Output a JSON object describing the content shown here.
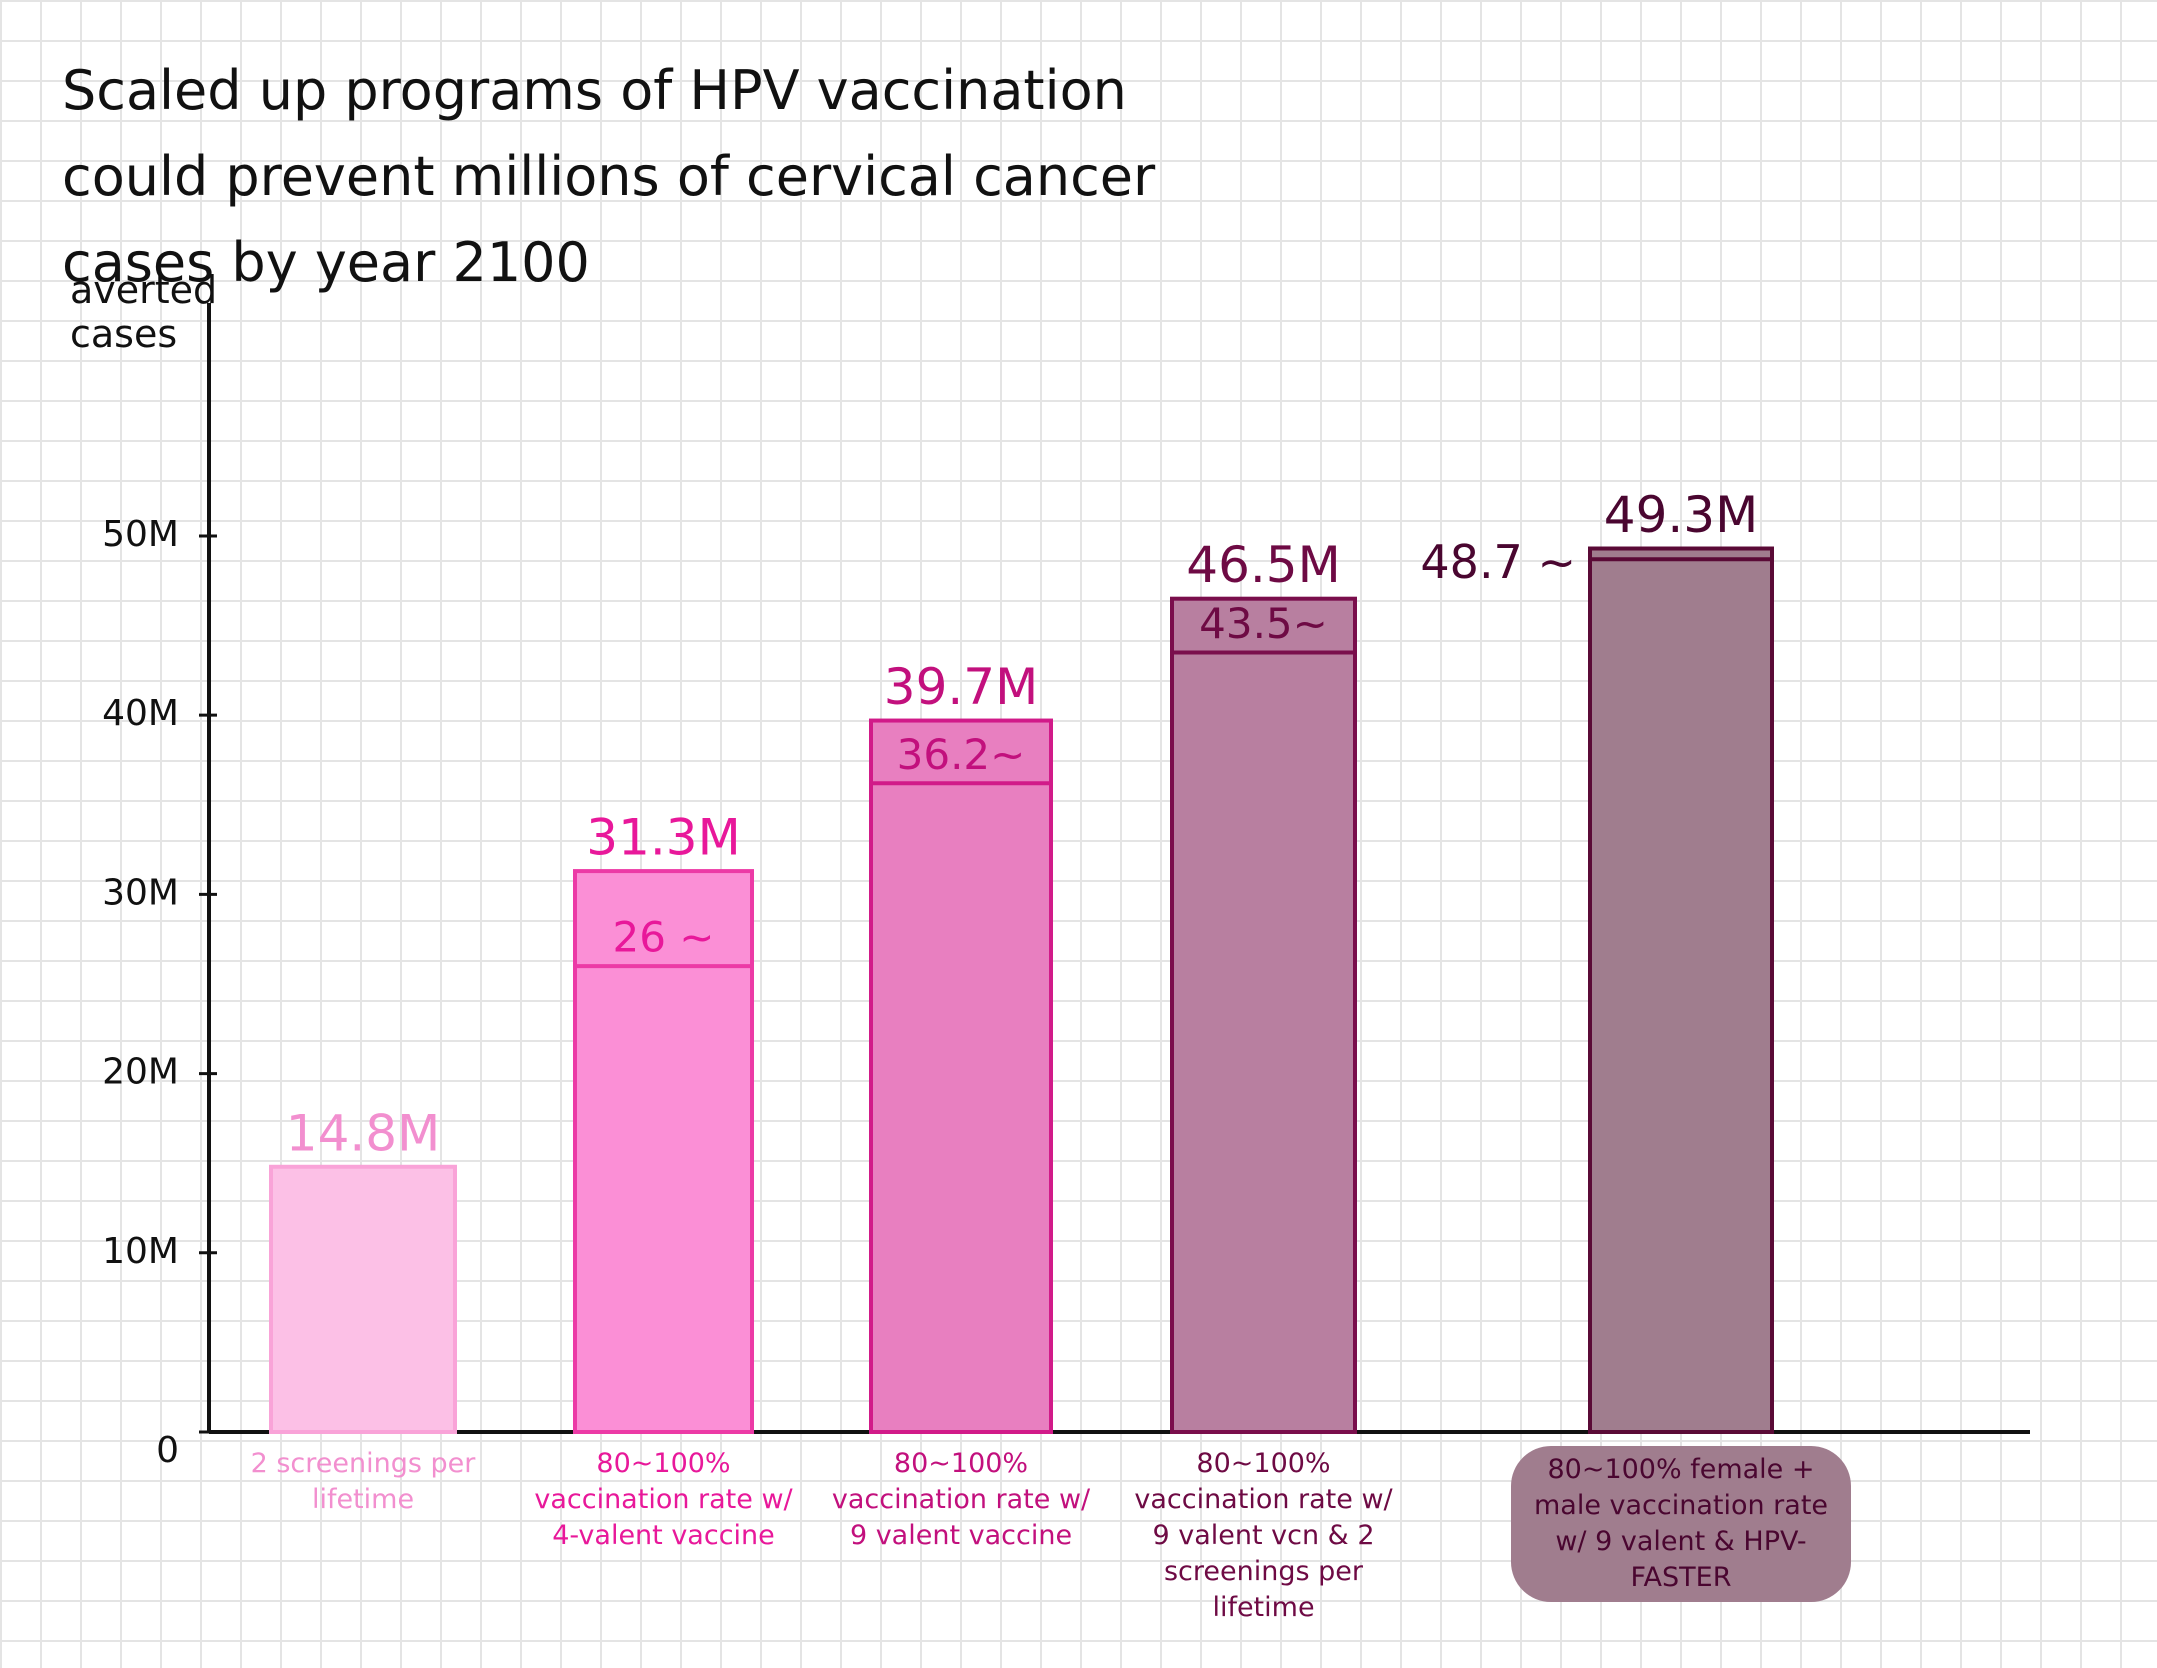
{
  "chart_data": {
    "type": "range_bar",
    "title": "Scaled up programs of HPV vaccination could prevent millions of cervical cancer cases by year 2100",
    "y_label": "averted cases",
    "categories": [
      "2 screenings per lifetime",
      "80~100% vaccination rate w/ 4-valent vaccine",
      "80~100% vaccination rate w/ 9 valent vaccine",
      "80~100% vaccination rate w/ 9 valent vcn & 2 screenings per lifetime",
      "80~100% female + male vaccination rate w/ 9 valent & HPV-FASTER"
    ],
    "values": [
      14.8,
      31.3,
      39.7,
      46.5,
      49.3
    ],
    "value_labels": [
      "14.8M",
      "31.3M",
      "39.7M",
      "46.5M",
      "49.3M"
    ],
    "low_values": [
      null,
      26,
      36.2,
      43.5,
      48.7
    ],
    "low_value_labels": [
      null,
      "26 ~",
      "36.2~",
      "43.5~",
      "48.7 ~"
    ],
    "colors": [
      "#fcc0e6",
      "#fb8fd6",
      "#e87fc0",
      "#b87fa0",
      "#a07d8e"
    ],
    "edge_colors": [
      "#f9a3d8",
      "#ec3aa6",
      "#d11a89",
      "#7a0e4c",
      "#5a0a36"
    ],
    "label_colors": [
      "#f28fcf",
      "#e8189a",
      "#c2107d",
      "#6e0a44",
      "#4a0630"
    ],
    "ylim": [
      0,
      63
    ],
    "yticks": [
      0,
      {
        "value": 10,
        "label": "10M"
      },
      {
        "value": 20,
        "label": "20M"
      },
      {
        "value": 30,
        "label": "30M"
      },
      {
        "value": 40,
        "label": "40M"
      },
      {
        "value": 50,
        "label": "50M"
      }
    ]
  }
}
